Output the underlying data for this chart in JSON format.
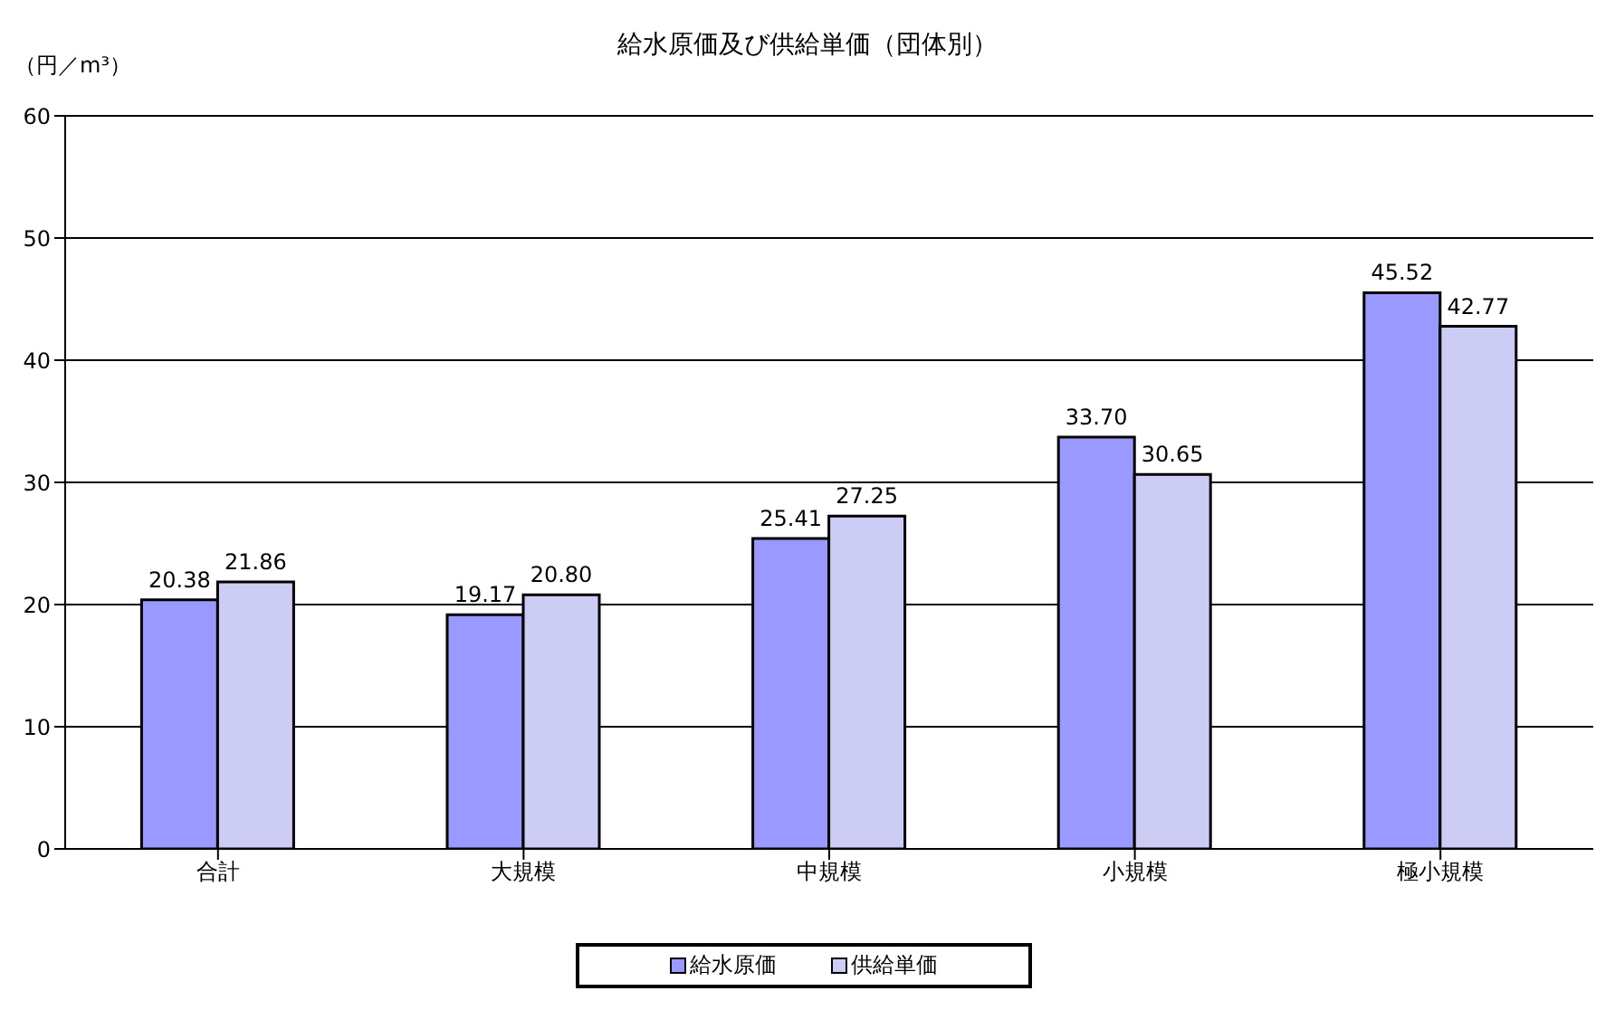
{
  "chart_data": {
    "type": "bar",
    "title": "給水原価及び供給単価（団体別）",
    "ylabel": "（円／m³）",
    "categories": [
      "合計",
      "大規模",
      "中規模",
      "小規模",
      "極小規模"
    ],
    "series": [
      {
        "name": "給水原価",
        "color": "#9999ff",
        "values": [
          20.38,
          19.17,
          25.41,
          33.7,
          45.52
        ]
      },
      {
        "name": "供給単価",
        "color": "#ccccf4",
        "values": [
          21.86,
          20.8,
          27.25,
          30.65,
          42.77
        ]
      }
    ],
    "value_labels": [
      [
        "20.38",
        "19.17",
        "25.41",
        "33.70",
        "45.52"
      ],
      [
        "21.86",
        "20.80",
        "27.25",
        "30.65",
        "42.77"
      ]
    ],
    "ylim": [
      0,
      60
    ],
    "yticks": [
      0,
      10,
      20,
      30,
      40,
      50,
      60
    ],
    "grid": "y",
    "legend": "bottom"
  }
}
